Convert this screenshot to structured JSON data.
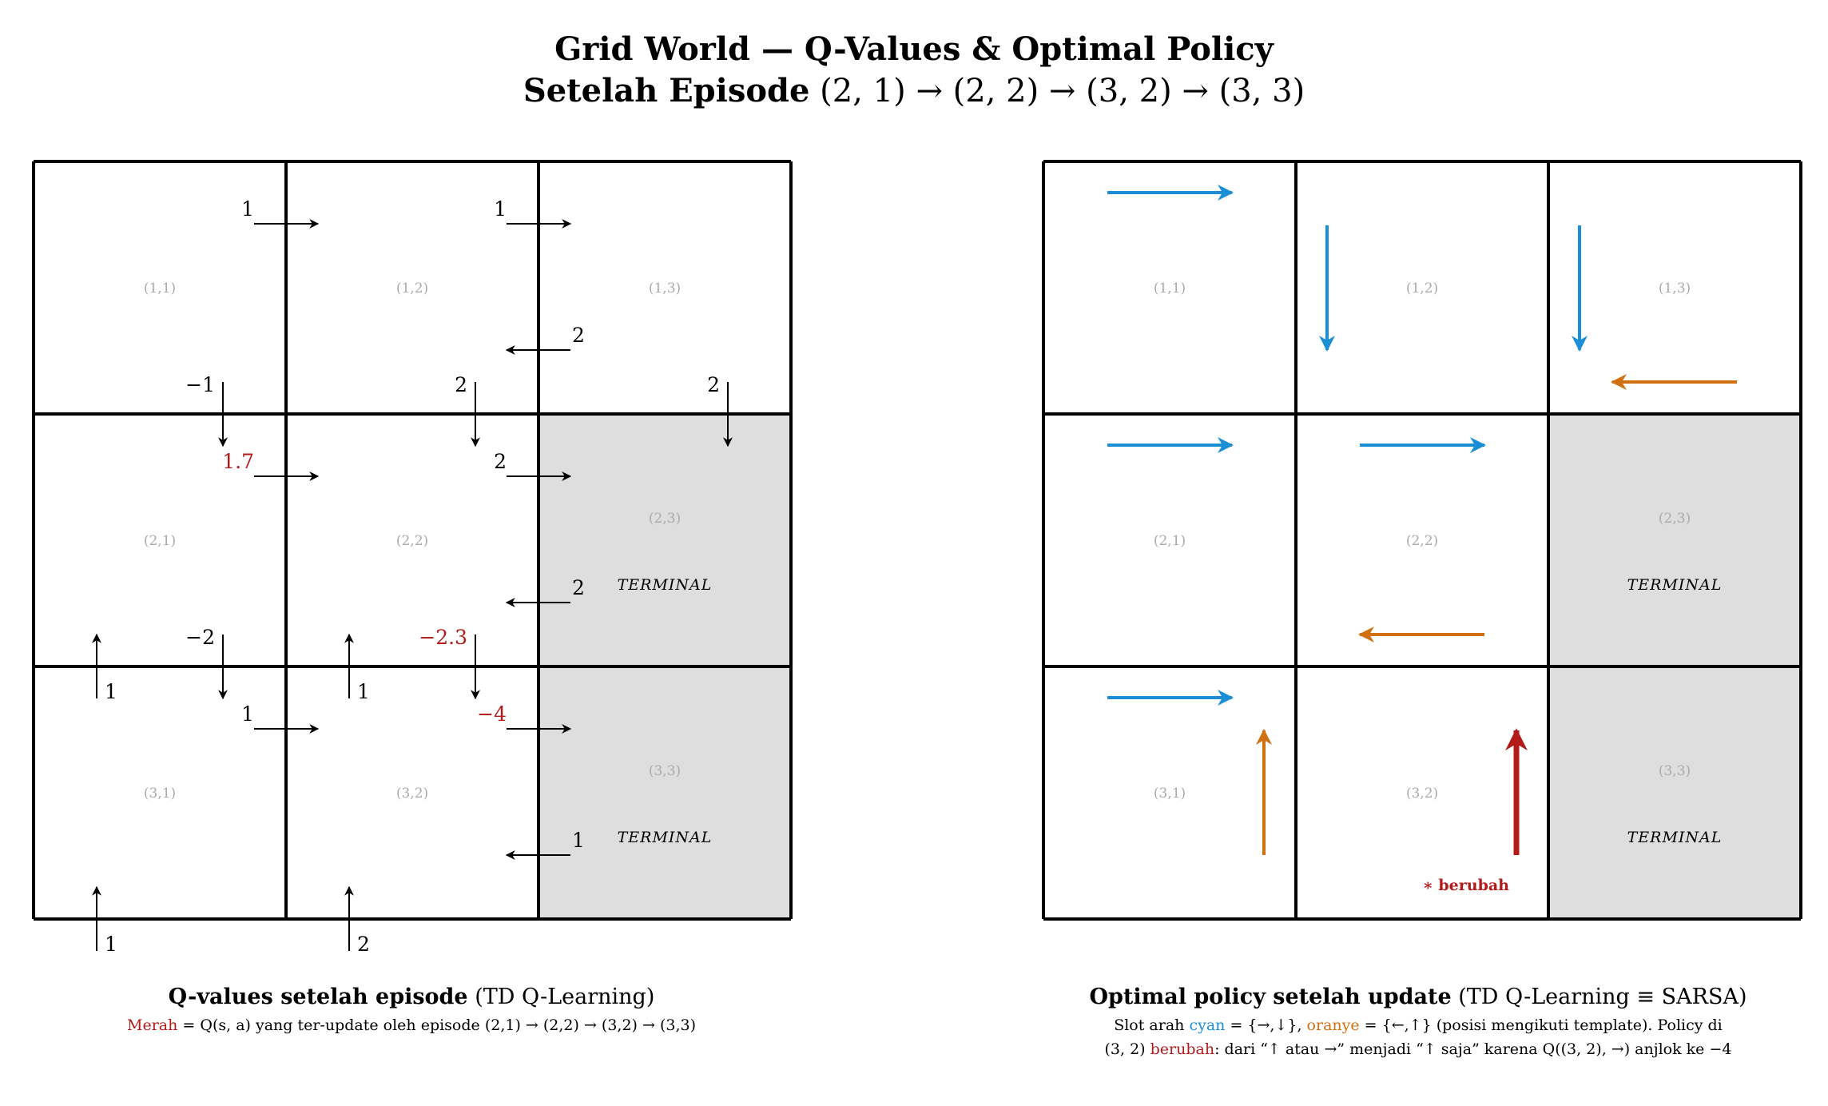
{
  "title": {
    "line1": "Grid World — Q-Values & Optimal Policy",
    "line2_bold": "Setelah Episode",
    "line2_rest": " (2, 1) → (2, 2) → (3, 2) → (3, 3)"
  },
  "colors": {
    "cyan": "#1a8fd6",
    "orange": "#d07010",
    "red": "#b31b1b",
    "terminal_fill": "#dedede",
    "cell_label": "#aaaaaa"
  },
  "grid": {
    "rows": 3,
    "cols": 3,
    "terminal_cells": [
      "2,3",
      "3,3"
    ],
    "terminal_label": "TERMINAL",
    "cell_labels": [
      [
        "(1,1)",
        "(1,2)",
        "(1,3)"
      ],
      [
        "(2,1)",
        "(2,2)",
        "(2,3)"
      ],
      [
        "(3,1)",
        "(3,2)",
        "(3,3)"
      ]
    ]
  },
  "q_values": [
    {
      "state": "1,1",
      "action": "right",
      "value": "1",
      "updated": false
    },
    {
      "state": "1,1",
      "action": "down",
      "value": "−1",
      "updated": false
    },
    {
      "state": "1,2",
      "action": "right",
      "value": "1",
      "updated": false
    },
    {
      "state": "1,2",
      "action": "left",
      "value": "2",
      "updated": false
    },
    {
      "state": "1,2",
      "action": "down",
      "value": "2",
      "updated": false
    },
    {
      "state": "1,3",
      "action": "down",
      "value": "2",
      "updated": false
    },
    {
      "state": "2,1",
      "action": "up",
      "value": "1",
      "updated": false
    },
    {
      "state": "2,1",
      "action": "right",
      "value": "1.7",
      "updated": true
    },
    {
      "state": "2,1",
      "action": "down",
      "value": "−2",
      "updated": false
    },
    {
      "state": "2,2",
      "action": "up",
      "value": "1",
      "updated": false
    },
    {
      "state": "2,2",
      "action": "right",
      "value": "2",
      "updated": false
    },
    {
      "state": "2,2",
      "action": "left",
      "value": "2",
      "updated": false
    },
    {
      "state": "2,2",
      "action": "down",
      "value": "−2.3",
      "updated": true
    },
    {
      "state": "3,1",
      "action": "up",
      "value": "1",
      "updated": false
    },
    {
      "state": "3,1",
      "action": "right",
      "value": "1",
      "updated": false
    },
    {
      "state": "3,2",
      "action": "up",
      "value": "2",
      "updated": false
    },
    {
      "state": "3,2",
      "action": "right",
      "value": "−4",
      "updated": true
    },
    {
      "state": "3,2",
      "action": "left",
      "value": "1",
      "updated": false
    }
  ],
  "policy": [
    {
      "state": "1,1",
      "arrows": [
        {
          "dir": "right",
          "color": "cyan"
        }
      ]
    },
    {
      "state": "1,2",
      "arrows": [
        {
          "dir": "down",
          "color": "cyan"
        }
      ]
    },
    {
      "state": "1,3",
      "arrows": [
        {
          "dir": "down",
          "color": "cyan"
        },
        {
          "dir": "left",
          "color": "orange"
        }
      ]
    },
    {
      "state": "2,1",
      "arrows": [
        {
          "dir": "right",
          "color": "cyan"
        }
      ]
    },
    {
      "state": "2,2",
      "arrows": [
        {
          "dir": "right",
          "color": "cyan"
        },
        {
          "dir": "left",
          "color": "orange"
        }
      ]
    },
    {
      "state": "3,1",
      "arrows": [
        {
          "dir": "right",
          "color": "cyan"
        },
        {
          "dir": "up",
          "color": "orange"
        }
      ]
    },
    {
      "state": "3,2",
      "arrows": [
        {
          "dir": "up",
          "color": "red"
        }
      ]
    }
  ],
  "changed_note": "∗ berubah",
  "left_caption": {
    "head_bold": "Q-values setelah episode",
    "head_rest": " (TD Q-Learning)",
    "sub_red": "Merah",
    "sub_rest": " = Q(s, a) yang ter-update oleh episode (2,1) → (2,2) → (3,2) → (3,3)"
  },
  "right_caption": {
    "head_bold": "Optimal policy setelah update",
    "head_rest": " (TD Q-Learning ≡ SARSA)",
    "line1_a": "Slot arah ",
    "line1_cyan": "cyan",
    "line1_b": " = {→,↓}, ",
    "line1_orange": "oranye",
    "line1_c": " = {←,↑} (posisi mengikuti template). Policy di",
    "line2_a": "(3, 2) ",
    "line2_red": "berubah",
    "line2_b": ": dari “↑ atau →” menjadi “↑ saja” karena Q((3, 2), →) anjlok ke −4"
  }
}
